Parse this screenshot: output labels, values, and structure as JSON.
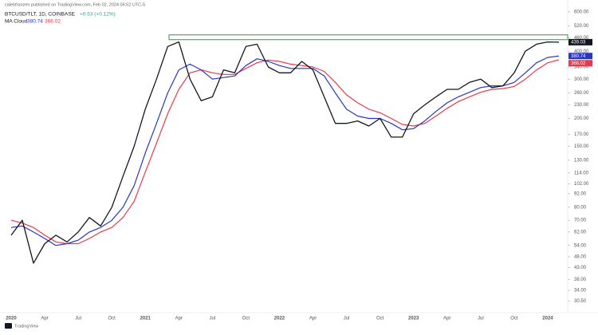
{
  "header": {
    "publisher": "calebfranzen published on TradingView.com, Feb 02, 2024 06:52 UTC-5",
    "brand": "TradingView"
  },
  "chart_data": {
    "type": "line",
    "title": "BTCUSD/TLT, 1D, COINBASE",
    "change": "+0.53 (+0.12%)",
    "change_color": "#26a69a",
    "ma_label": "MA Cloud",
    "categories": [
      "2020",
      null,
      null,
      "Apr",
      null,
      null,
      "Jul",
      null,
      null,
      "Oct",
      null,
      null,
      "2021",
      null,
      null,
      "Apr",
      null,
      null,
      "Jul",
      null,
      null,
      "Oct",
      null,
      null,
      "2022",
      null,
      null,
      "Apr",
      null,
      null,
      "Jul",
      null,
      null,
      "Oct",
      null,
      null,
      "2023",
      null,
      null,
      "Apr",
      null,
      null,
      "Jul",
      null,
      null,
      "Oct",
      null,
      null,
      "2024",
      null
    ],
    "series": [
      {
        "color": "#131722",
        "values": [
          60,
          70,
          45,
          55,
          60,
          56,
          62,
          72,
          66,
          80,
          110,
          150,
          220,
          300,
          420,
          440,
          300,
          240,
          250,
          330,
          320,
          420,
          430,
          340,
          320,
          320,
          360,
          330,
          250,
          190,
          190,
          195,
          185,
          200,
          165,
          165,
          210,
          230,
          250,
          270,
          270,
          290,
          300,
          275,
          280,
          320,
          400,
          430,
          440,
          439.03
        ]
      },
      {
        "color": "#2836c8",
        "values": [
          65,
          66,
          62,
          58,
          54,
          55,
          57,
          62,
          65,
          70,
          80,
          100,
          140,
          190,
          260,
          330,
          350,
          330,
          300,
          305,
          310,
          345,
          370,
          360,
          345,
          335,
          335,
          335,
          310,
          260,
          220,
          205,
          200,
          200,
          190,
          178,
          180,
          195,
          215,
          235,
          250,
          262,
          275,
          280,
          280,
          290,
          320,
          355,
          375,
          380.74
        ]
      },
      {
        "color": "#e83a4a",
        "values": [
          70,
          68,
          65,
          60,
          56,
          55,
          55,
          58,
          62,
          65,
          72,
          85,
          115,
          155,
          210,
          270,
          320,
          330,
          320,
          315,
          315,
          335,
          355,
          365,
          360,
          350,
          345,
          340,
          325,
          290,
          255,
          235,
          220,
          212,
          200,
          188,
          185,
          190,
          205,
          222,
          238,
          250,
          262,
          270,
          272,
          278,
          300,
          330,
          355,
          366.02
        ]
      }
    ],
    "hline": {
      "value": 462,
      "color": "#4caf50"
    },
    "log_scale": true,
    "ylim": [
      27,
      635
    ],
    "yticks": [
      {
        "value": 30.5,
        "label": "30.50"
      },
      {
        "value": 34,
        "label": "34.00"
      },
      {
        "value": 38,
        "label": "38.00"
      },
      {
        "value": 43,
        "label": "43.00"
      },
      {
        "value": 48,
        "label": "48.00"
      },
      {
        "value": 54,
        "label": "54.00"
      },
      {
        "value": 62,
        "label": "62.00"
      },
      {
        "value": 70,
        "label": "70.00"
      },
      {
        "value": 80,
        "label": "80.00"
      },
      {
        "value": 92,
        "label": "92.00"
      },
      {
        "value": 102,
        "label": "102.00"
      },
      {
        "value": 114,
        "label": "114.00"
      },
      {
        "value": 130,
        "label": "130.00"
      },
      {
        "value": 150,
        "label": "150.00"
      },
      {
        "value": 170,
        "label": "170.00"
      },
      {
        "value": 200,
        "label": "200.00"
      },
      {
        "value": 230,
        "label": "230.00"
      },
      {
        "value": 260,
        "label": "260.00"
      },
      {
        "value": 300,
        "label": "300.00"
      },
      {
        "value": 340,
        "label": "340.00"
      },
      {
        "value": 400,
        "label": "400.00"
      },
      {
        "value": 460,
        "label": "460.00"
      },
      {
        "value": 520,
        "label": "520.00"
      },
      {
        "value": 600,
        "label": "600.00"
      }
    ],
    "grid": false
  }
}
